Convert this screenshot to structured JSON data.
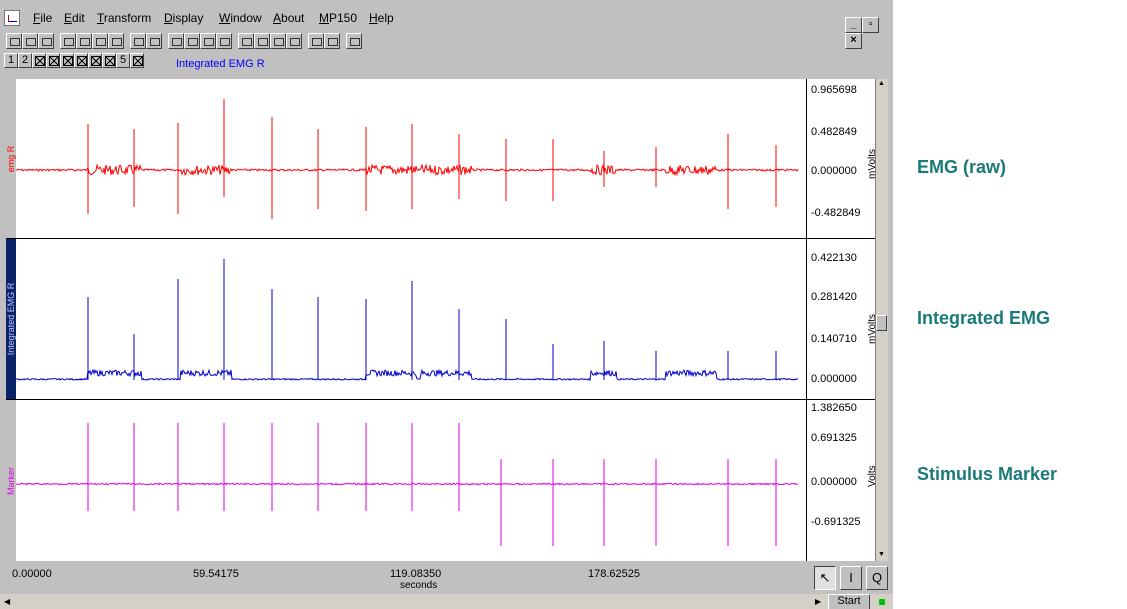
{
  "menu": [
    "File",
    "Edit",
    "Transform",
    "Display",
    "Window",
    "About",
    "MP150",
    "Help"
  ],
  "window_buttons": [
    "_",
    "▫",
    "×"
  ],
  "channel_buttons": [
    "1",
    "2",
    "",
    "",
    "",
    "",
    "5",
    ""
  ],
  "active_channel_label": "Integrated EMG R",
  "channels": [
    {
      "name": "emg R",
      "unit": "mVolts",
      "ticks": [
        "0.965698",
        "0.482849",
        "0.000000",
        "-0.482849"
      ],
      "color": "#ff0000"
    },
    {
      "name": "Integrated EMG R",
      "unit": "mVolts",
      "ticks": [
        "0.422130",
        "0.281420",
        "0.140710",
        "0.000000"
      ],
      "color": "#0000cc"
    },
    {
      "name": "Marker",
      "unit": "Volts",
      "ticks": [
        "1.382650",
        "0.691325",
        "0.000000",
        "-0.691325"
      ],
      "color": "#e000e0"
    }
  ],
  "time_axis": {
    "labels": [
      "0.00000",
      "59.54175",
      "119.08350",
      "178.62525"
    ],
    "unit": "seconds"
  },
  "tools": {
    "arrow": "↖",
    "ibeam": "I",
    "zoom": "Q"
  },
  "start_label": "Start",
  "annotations": [
    "EMG (raw)",
    "Integrated EMG",
    "Stimulus Marker"
  ],
  "colors": {
    "raw": "#ff0000",
    "integrated": "#0000cc",
    "marker": "#e000e0",
    "annotation": "#1a7a7a"
  }
}
